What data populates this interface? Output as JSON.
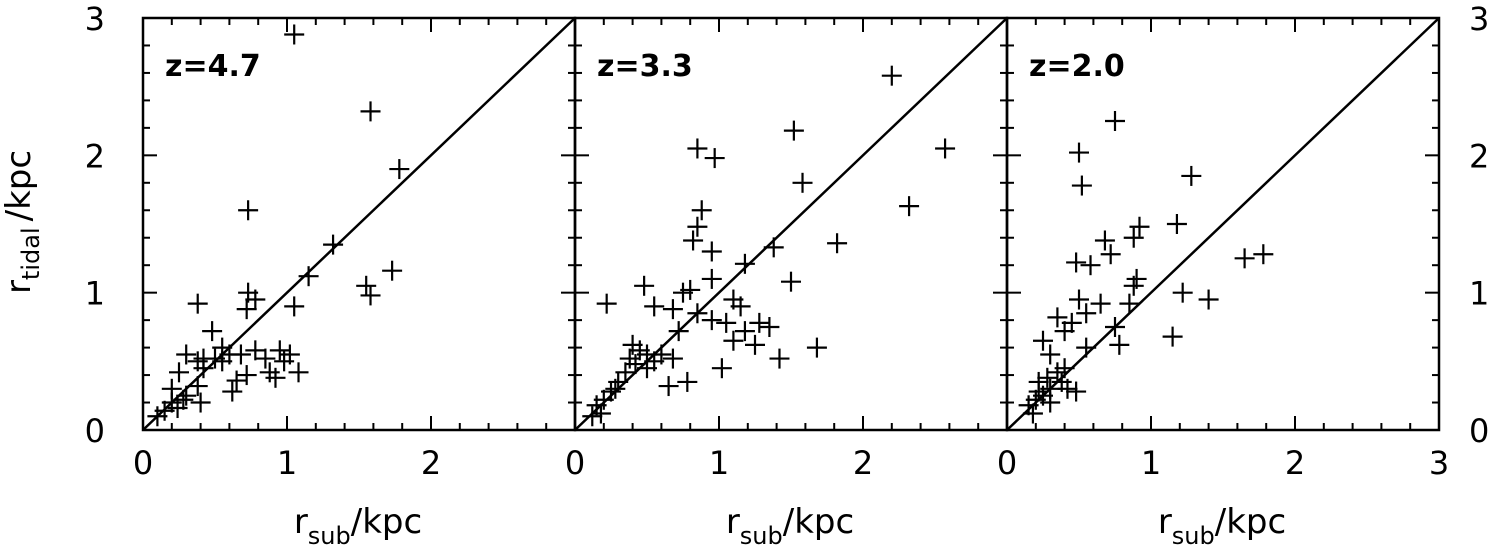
{
  "chart_data": [
    {
      "type": "scatter",
      "title": "",
      "annotation": "z=4.7",
      "xlabel": "r_sub/kpc",
      "ylabel": "r_tidal/kpc",
      "xlim": [
        0,
        3
      ],
      "ylim": [
        0,
        3
      ],
      "reference_line": "y = x",
      "series": [
        {
          "marker": "+",
          "points": [
            [
              1.05,
              2.88
            ],
            [
              1.58,
              2.32
            ],
            [
              1.78,
              1.9
            ],
            [
              0.73,
              1.6
            ],
            [
              1.32,
              1.35
            ],
            [
              1.15,
              1.12
            ],
            [
              1.73,
              1.16
            ],
            [
              1.55,
              1.05
            ],
            [
              1.58,
              0.98
            ],
            [
              0.73,
              1.0
            ],
            [
              0.78,
              0.95
            ],
            [
              0.38,
              0.92
            ],
            [
              0.72,
              0.88
            ],
            [
              1.05,
              0.9
            ],
            [
              0.48,
              0.72
            ],
            [
              0.55,
              0.6
            ],
            [
              0.6,
              0.55
            ],
            [
              0.55,
              0.5
            ],
            [
              0.5,
              0.52
            ],
            [
              0.42,
              0.52
            ],
            [
              0.38,
              0.5
            ],
            [
              0.3,
              0.55
            ],
            [
              0.25,
              0.42
            ],
            [
              0.68,
              0.55
            ],
            [
              0.78,
              0.58
            ],
            [
              0.85,
              0.52
            ],
            [
              0.95,
              0.58
            ],
            [
              0.98,
              0.5
            ],
            [
              1.02,
              0.55
            ],
            [
              0.88,
              0.42
            ],
            [
              1.08,
              0.42
            ],
            [
              0.72,
              0.4
            ],
            [
              0.65,
              0.36
            ],
            [
              0.62,
              0.28
            ],
            [
              0.38,
              0.32
            ],
            [
              0.28,
              0.22
            ],
            [
              0.2,
              0.2
            ],
            [
              0.24,
              0.16
            ],
            [
              0.15,
              0.14
            ],
            [
              0.1,
              0.1
            ],
            [
              0.3,
              0.25
            ],
            [
              0.4,
              0.2
            ],
            [
              0.42,
              0.45
            ],
            [
              0.92,
              0.38
            ],
            [
              0.2,
              0.3
            ]
          ]
        }
      ]
    },
    {
      "type": "scatter",
      "title": "",
      "annotation": "z=3.3",
      "xlabel": "r_sub/kpc",
      "ylabel": "",
      "xlim": [
        0,
        3
      ],
      "ylim": [
        0,
        3
      ],
      "reference_line": "y = x",
      "series": [
        {
          "marker": "+",
          "points": [
            [
              2.2,
              2.58
            ],
            [
              1.52,
              2.18
            ],
            [
              0.85,
              2.05
            ],
            [
              0.97,
              1.98
            ],
            [
              2.57,
              2.05
            ],
            [
              1.58,
              1.8
            ],
            [
              0.88,
              1.6
            ],
            [
              0.85,
              1.48
            ],
            [
              2.32,
              1.63
            ],
            [
              0.82,
              1.38
            ],
            [
              1.82,
              1.36
            ],
            [
              0.95,
              1.3
            ],
            [
              1.38,
              1.33
            ],
            [
              1.18,
              1.21
            ],
            [
              1.5,
              1.08
            ],
            [
              0.95,
              1.1
            ],
            [
              0.48,
              1.05
            ],
            [
              0.75,
              1.0
            ],
            [
              0.8,
              1.02
            ],
            [
              0.22,
              0.92
            ],
            [
              0.55,
              0.9
            ],
            [
              1.1,
              0.95
            ],
            [
              1.15,
              0.9
            ],
            [
              0.68,
              0.88
            ],
            [
              0.85,
              0.85
            ],
            [
              0.95,
              0.8
            ],
            [
              1.05,
              0.78
            ],
            [
              1.28,
              0.78
            ],
            [
              1.35,
              0.75
            ],
            [
              0.72,
              0.72
            ],
            [
              1.18,
              0.72
            ],
            [
              1.1,
              0.65
            ],
            [
              1.25,
              0.62
            ],
            [
              1.68,
              0.6
            ],
            [
              0.4,
              0.62
            ],
            [
              0.45,
              0.58
            ],
            [
              0.5,
              0.55
            ],
            [
              0.38,
              0.52
            ],
            [
              0.55,
              0.5
            ],
            [
              0.6,
              0.55
            ],
            [
              0.68,
              0.52
            ],
            [
              0.42,
              0.48
            ],
            [
              0.5,
              0.45
            ],
            [
              0.35,
              0.42
            ],
            [
              1.42,
              0.52
            ],
            [
              1.02,
              0.45
            ],
            [
              0.78,
              0.35
            ],
            [
              0.65,
              0.32
            ],
            [
              0.3,
              0.35
            ],
            [
              0.25,
              0.28
            ],
            [
              0.2,
              0.22
            ],
            [
              0.15,
              0.18
            ],
            [
              0.18,
              0.12
            ],
            [
              0.28,
              0.3
            ],
            [
              0.12,
              0.1
            ]
          ]
        }
      ]
    },
    {
      "type": "scatter",
      "title": "",
      "annotation": "z=2.0",
      "xlabel": "r_sub/kpc",
      "ylabel": "",
      "xlim": [
        0,
        3
      ],
      "ylim": [
        0,
        3
      ],
      "reference_line": "y = x",
      "series": [
        {
          "marker": "+",
          "points": [
            [
              0.75,
              2.25
            ],
            [
              0.5,
              2.02
            ],
            [
              0.52,
              1.78
            ],
            [
              1.28,
              1.85
            ],
            [
              0.92,
              1.48
            ],
            [
              0.88,
              1.4
            ],
            [
              0.68,
              1.38
            ],
            [
              1.18,
              1.5
            ],
            [
              0.72,
              1.28
            ],
            [
              1.78,
              1.28
            ],
            [
              1.65,
              1.25
            ],
            [
              0.48,
              1.22
            ],
            [
              0.58,
              1.2
            ],
            [
              0.9,
              1.1
            ],
            [
              0.88,
              1.05
            ],
            [
              1.22,
              1.0
            ],
            [
              1.4,
              0.95
            ],
            [
              0.5,
              0.95
            ],
            [
              0.85,
              0.92
            ],
            [
              0.65,
              0.92
            ],
            [
              0.55,
              0.85
            ],
            [
              0.75,
              0.75
            ],
            [
              0.45,
              0.78
            ],
            [
              0.35,
              0.82
            ],
            [
              0.4,
              0.72
            ],
            [
              1.15,
              0.68
            ],
            [
              0.78,
              0.62
            ],
            [
              0.55,
              0.6
            ],
            [
              0.25,
              0.65
            ],
            [
              0.3,
              0.55
            ],
            [
              0.4,
              0.45
            ],
            [
              0.35,
              0.42
            ],
            [
              0.28,
              0.38
            ],
            [
              0.22,
              0.35
            ],
            [
              0.38,
              0.35
            ],
            [
              0.3,
              0.3
            ],
            [
              0.25,
              0.25
            ],
            [
              0.2,
              0.22
            ],
            [
              0.15,
              0.18
            ],
            [
              0.3,
              0.2
            ],
            [
              0.18,
              0.12
            ],
            [
              0.42,
              0.3
            ],
            [
              0.48,
              0.28
            ],
            [
              0.22,
              0.28
            ]
          ]
        }
      ]
    }
  ],
  "axis_text": {
    "x_ticks": [
      "0",
      "1",
      "2"
    ],
    "x_ticks_last": [
      "0",
      "1",
      "2",
      "3"
    ],
    "y_ticks": [
      "0",
      "1",
      "2",
      "3"
    ],
    "x_title_main": "r",
    "x_title_sub": "sub",
    "x_title_unit": "/kpc",
    "y_title_main": "r",
    "y_title_sub": "tidal",
    "y_title_unit": "/kpc"
  }
}
